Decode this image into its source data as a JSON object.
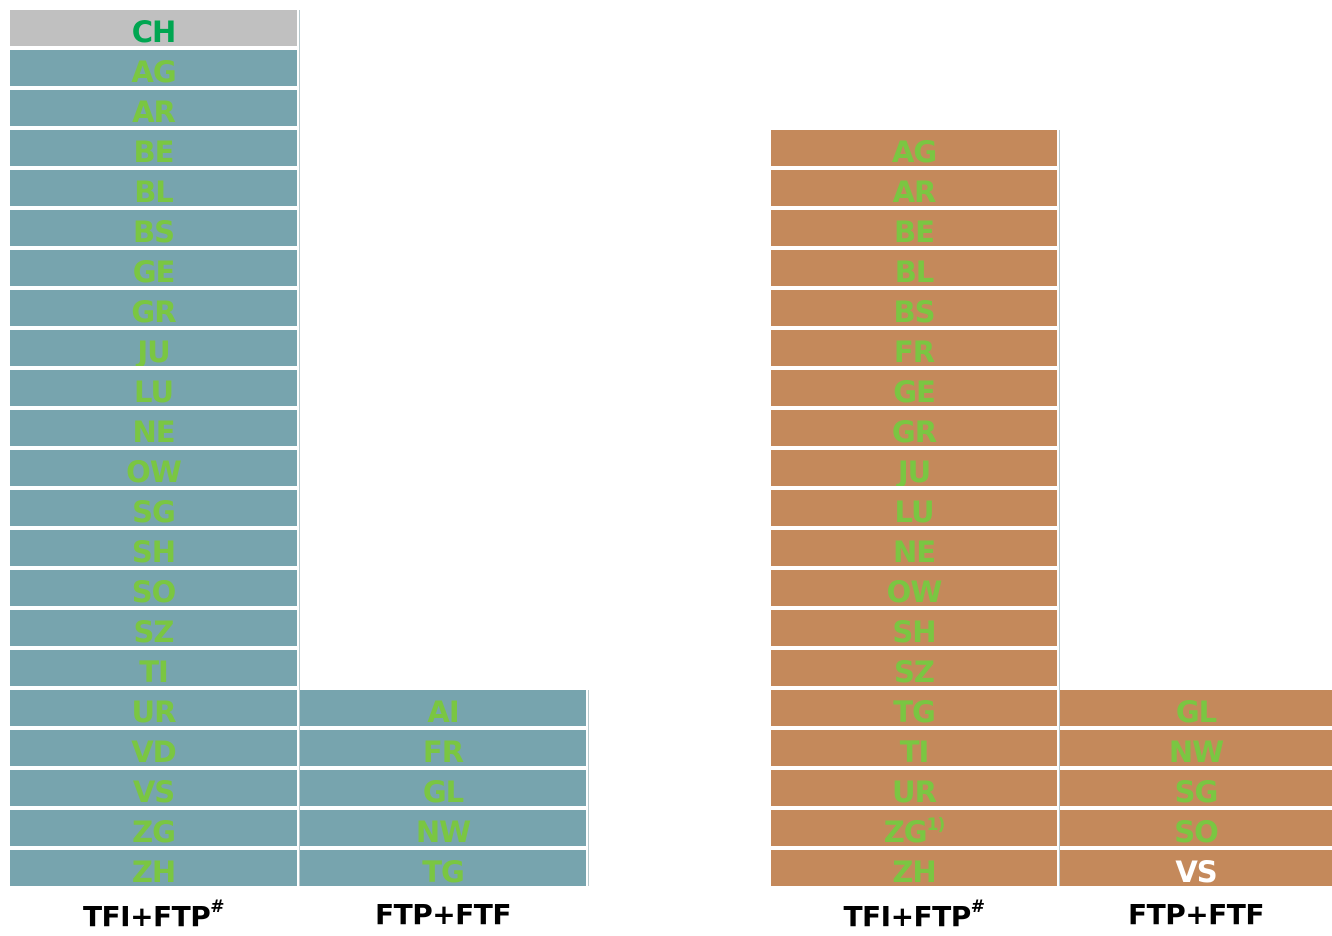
{
  "chart_data": {
    "type": "table",
    "colors": {
      "left_fill": "#77a4ae",
      "right_fill": "#c4895b",
      "header_fill": "#c0c0c0",
      "text_green": "#7ac642",
      "text_dark_green": "#00a651",
      "text_white": "#ffffff"
    },
    "groups": [
      {
        "columns": [
          {
            "label": "TFI+FTP",
            "label_sup": "#",
            "header": "CH",
            "items": [
              "AG",
              "AR",
              "BE",
              "BL",
              "BS",
              "GE",
              "GR",
              "JU",
              "LU",
              "NE",
              "OW",
              "SG",
              "SH",
              "SO",
              "SZ",
              "TI",
              "UR",
              "VD",
              "VS",
              "ZG",
              "ZH"
            ]
          },
          {
            "label": "FTP+FTF",
            "label_sup": "",
            "items": [
              "AI",
              "FR",
              "GL",
              "NW",
              "TG"
            ]
          }
        ]
      },
      {
        "columns": [
          {
            "label": "TFI+FTP",
            "label_sup": "#",
            "items": [
              "AG",
              "AR",
              "BE",
              "BL",
              "BS",
              "FR",
              "GE",
              "GR",
              "JU",
              "LU",
              "NE",
              "OW",
              "SH",
              "SZ",
              "TG",
              "TI",
              "UR",
              "ZG",
              "ZH"
            ],
            "item_sups": {
              "ZG": "1)"
            }
          },
          {
            "label": "FTP+FTF",
            "label_sup": "",
            "items": [
              "GL",
              "NW",
              "SG",
              "SO",
              "VS"
            ],
            "white_items": [
              "VS"
            ]
          }
        ]
      }
    ]
  }
}
